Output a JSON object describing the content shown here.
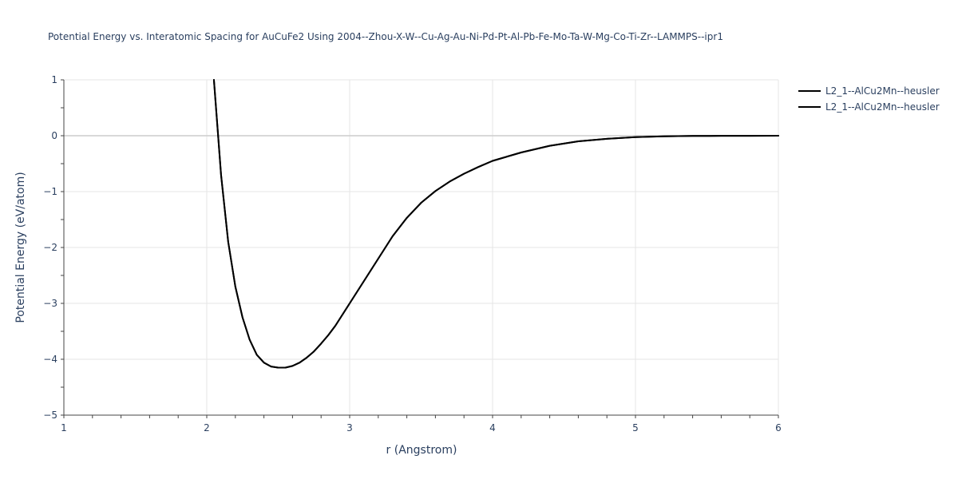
{
  "chart_data": {
    "type": "line",
    "title": "Potential Energy vs. Interatomic Spacing for AuCuFe2 Using 2004--Zhou-X-W--Cu-Ag-Au-Ni-Pd-Pt-Al-Pb-Fe-Mo-Ta-W-Mg-Co-Ti-Zr--LAMMPS--ipr1",
    "xlabel": "r (Angstrom)",
    "ylabel": "Potential Energy (eV/atom)",
    "xlim": [
      1,
      6
    ],
    "ylim": [
      -5,
      1
    ],
    "x_ticks": [
      1,
      2,
      3,
      4,
      5,
      6
    ],
    "y_ticks": [
      1,
      0,
      -1,
      -2,
      -3,
      -4,
      -5
    ],
    "x_tick_labels": [
      "1",
      "2",
      "3",
      "4",
      "5",
      "6"
    ],
    "y_tick_labels": [
      "1",
      "0",
      "−1",
      "−2",
      "−3",
      "−4",
      "−5"
    ],
    "grid": true,
    "legend_position": "top-right",
    "series": [
      {
        "name": "L2_1--AlCu2Mn--heusler",
        "color": "#000000",
        "x": [
          2.05,
          2.075,
          2.1,
          2.15,
          2.2,
          2.25,
          2.3,
          2.35,
          2.4,
          2.45,
          2.5,
          2.55,
          2.6,
          2.65,
          2.7,
          2.75,
          2.8,
          2.85,
          2.9,
          3.0,
          3.1,
          3.2,
          3.3,
          3.4,
          3.5,
          3.6,
          3.7,
          3.8,
          3.9,
          4.0,
          4.2,
          4.4,
          4.6,
          4.8,
          5.0,
          5.2,
          5.4,
          5.6,
          5.8,
          6.0
        ],
        "y": [
          1.0,
          0.15,
          -0.7,
          -1.9,
          -2.7,
          -3.25,
          -3.65,
          -3.92,
          -4.06,
          -4.13,
          -4.15,
          -4.15,
          -4.12,
          -4.06,
          -3.97,
          -3.86,
          -3.72,
          -3.57,
          -3.4,
          -3.0,
          -2.6,
          -2.2,
          -1.8,
          -1.47,
          -1.2,
          -0.99,
          -0.82,
          -0.68,
          -0.56,
          -0.45,
          -0.3,
          -0.18,
          -0.1,
          -0.055,
          -0.025,
          -0.01,
          -0.004,
          -0.002,
          -0.001,
          0.0
        ]
      },
      {
        "name": "L2_1--AlCu2Mn--heusler",
        "color": "#000000",
        "x": [
          2.05,
          2.075,
          2.1,
          2.15,
          2.2,
          2.25,
          2.3,
          2.35,
          2.4,
          2.45,
          2.5,
          2.55,
          2.6,
          2.65,
          2.7,
          2.75,
          2.8,
          2.85,
          2.9,
          3.0,
          3.1,
          3.2,
          3.3,
          3.4,
          3.5,
          3.6,
          3.7,
          3.8,
          3.9,
          4.0,
          4.2,
          4.4,
          4.6,
          4.8,
          5.0,
          5.2,
          5.4,
          5.6,
          5.8,
          6.0
        ],
        "y": [
          1.0,
          0.15,
          -0.7,
          -1.9,
          -2.7,
          -3.25,
          -3.65,
          -3.92,
          -4.06,
          -4.13,
          -4.15,
          -4.15,
          -4.12,
          -4.06,
          -3.97,
          -3.86,
          -3.72,
          -3.57,
          -3.4,
          -3.0,
          -2.6,
          -2.2,
          -1.8,
          -1.47,
          -1.2,
          -0.99,
          -0.82,
          -0.68,
          -0.56,
          -0.45,
          -0.3,
          -0.18,
          -0.1,
          -0.055,
          -0.025,
          -0.01,
          -0.004,
          -0.002,
          -0.001,
          0.0
        ]
      }
    ]
  }
}
